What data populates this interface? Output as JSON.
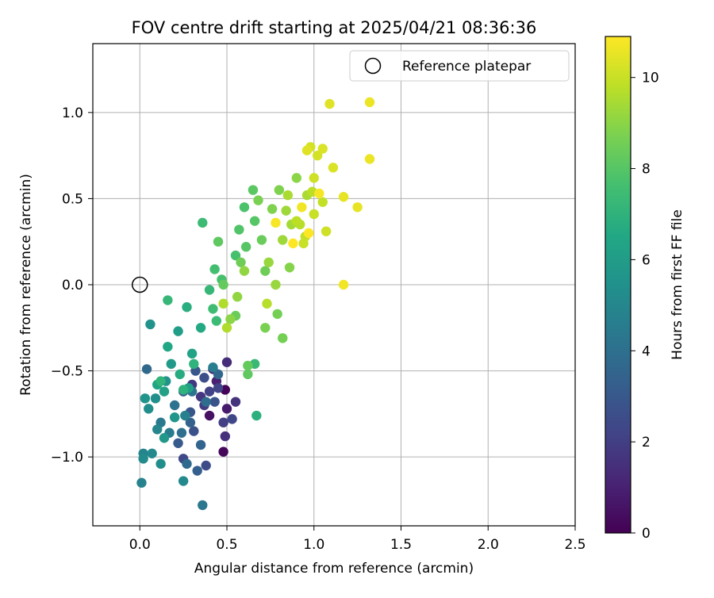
{
  "chart_data": {
    "type": "scatter",
    "title": "FOV centre drift starting at 2025/04/21 08:36:36",
    "xlabel": "Angular distance from reference (arcmin)",
    "ylabel": "Rotation from reference (arcmin)",
    "xlim": [
      -0.27,
      2.5
    ],
    "ylim": [
      -1.4,
      1.4
    ],
    "xticks": [
      0.0,
      0.5,
      1.0,
      1.5,
      2.0,
      2.5
    ],
    "xtick_labels": [
      "0.0",
      "0.5",
      "1.0",
      "1.5",
      "2.0",
      "2.5"
    ],
    "yticks": [
      -1.0,
      -0.5,
      0.0,
      0.5,
      1.0
    ],
    "ytick_labels": [
      "−1.0",
      "−0.5",
      "0.0",
      "0.5",
      "1.0"
    ],
    "grid": true,
    "legend": {
      "position": "top-right",
      "entries": [
        "Reference platepar"
      ]
    },
    "reference_point": {
      "label": "Reference platepar",
      "x": 0.0,
      "y": 0.0,
      "marker": "open-circle"
    },
    "colorbar": {
      "label": "Hours from first FF file",
      "min": 0,
      "max": 10.9,
      "ticks": [
        0,
        2,
        4,
        6,
        8,
        10
      ],
      "tick_labels": [
        "0",
        "2",
        "4",
        "6",
        "8",
        "10"
      ],
      "colormap": "viridis"
    },
    "series": [
      {
        "color_field": "hours",
        "points": [
          {
            "x": 0.49,
            "y": -0.61,
            "h": 0.1
          },
          {
            "x": 0.48,
            "y": -0.97,
            "h": 0.2
          },
          {
            "x": 0.4,
            "y": -0.76,
            "h": 0.5
          },
          {
            "x": 0.5,
            "y": -0.72,
            "h": 0.8
          },
          {
            "x": 0.44,
            "y": -0.56,
            "h": 1.0
          },
          {
            "x": 0.42,
            "y": -0.49,
            "h": 1.2
          },
          {
            "x": 0.5,
            "y": -0.45,
            "h": 1.4
          },
          {
            "x": 0.49,
            "y": -0.88,
            "h": 1.5
          },
          {
            "x": 0.55,
            "y": -0.68,
            "h": 1.6
          },
          {
            "x": 0.35,
            "y": -0.65,
            "h": 1.7
          },
          {
            "x": 0.3,
            "y": -0.58,
            "h": 1.8
          },
          {
            "x": 0.37,
            "y": -0.7,
            "h": 1.9
          },
          {
            "x": 0.48,
            "y": -0.8,
            "h": 2.0
          },
          {
            "x": 0.4,
            "y": -0.62,
            "h": 2.1
          },
          {
            "x": 0.45,
            "y": -0.6,
            "h": 2.2
          },
          {
            "x": 0.53,
            "y": -0.78,
            "h": 2.3
          },
          {
            "x": 0.25,
            "y": -1.01,
            "h": 2.4
          },
          {
            "x": 0.38,
            "y": -1.05,
            "h": 2.5
          },
          {
            "x": 0.37,
            "y": -0.54,
            "h": 2.6
          },
          {
            "x": 0.31,
            "y": -0.85,
            "h": 2.7
          },
          {
            "x": 0.43,
            "y": -0.68,
            "h": 2.8
          },
          {
            "x": 0.29,
            "y": -0.74,
            "h": 2.9
          },
          {
            "x": 0.32,
            "y": -0.5,
            "h": 3.0
          },
          {
            "x": 0.22,
            "y": -0.92,
            "h": 3.1
          },
          {
            "x": 0.25,
            "y": -0.62,
            "h": 3.2
          },
          {
            "x": 0.33,
            "y": -1.08,
            "h": 3.3
          },
          {
            "x": 0.29,
            "y": -0.8,
            "h": 3.4
          },
          {
            "x": 0.35,
            "y": -0.93,
            "h": 3.5
          },
          {
            "x": 0.45,
            "y": -0.52,
            "h": 3.6
          },
          {
            "x": 0.04,
            "y": -0.49,
            "h": 3.7
          },
          {
            "x": 0.27,
            "y": -1.04,
            "h": 3.8
          },
          {
            "x": 0.38,
            "y": -0.68,
            "h": 3.9
          },
          {
            "x": 0.24,
            "y": -0.86,
            "h": 4.0
          },
          {
            "x": 0.2,
            "y": -0.7,
            "h": 4.1
          },
          {
            "x": 0.3,
            "y": -0.62,
            "h": 4.2
          },
          {
            "x": 0.36,
            "y": -1.28,
            "h": 4.3
          },
          {
            "x": 0.12,
            "y": -0.8,
            "h": 4.4
          },
          {
            "x": 0.17,
            "y": -0.86,
            "h": 4.5
          },
          {
            "x": 0.42,
            "y": -0.48,
            "h": 4.6
          },
          {
            "x": 0.26,
            "y": -0.76,
            "h": 4.7
          },
          {
            "x": 0.01,
            "y": -1.15,
            "h": 4.8
          },
          {
            "x": 0.02,
            "y": -0.98,
            "h": 4.9
          },
          {
            "x": 0.1,
            "y": -0.84,
            "h": 5.0
          },
          {
            "x": 0.25,
            "y": -1.14,
            "h": 5.1
          },
          {
            "x": 0.07,
            "y": -0.98,
            "h": 5.1
          },
          {
            "x": 0.02,
            "y": -1.01,
            "h": 5.2
          },
          {
            "x": 0.12,
            "y": -1.04,
            "h": 5.3
          },
          {
            "x": 0.05,
            "y": -0.72,
            "h": 5.3
          },
          {
            "x": 0.09,
            "y": -0.66,
            "h": 5.4
          },
          {
            "x": 0.15,
            "y": -0.56,
            "h": 5.5
          },
          {
            "x": 0.06,
            "y": -0.23,
            "h": 5.5
          },
          {
            "x": 0.03,
            "y": -0.66,
            "h": 5.6
          },
          {
            "x": 0.2,
            "y": -0.77,
            "h": 5.7
          },
          {
            "x": 0.14,
            "y": -0.89,
            "h": 5.8
          },
          {
            "x": 0.18,
            "y": -0.46,
            "h": 5.9
          },
          {
            "x": 0.22,
            "y": -0.27,
            "h": 6.0
          },
          {
            "x": 0.28,
            "y": -0.6,
            "h": 6.1
          },
          {
            "x": 0.14,
            "y": -0.62,
            "h": 6.2
          },
          {
            "x": 0.3,
            "y": -0.4,
            "h": 6.3
          },
          {
            "x": 0.1,
            "y": -0.58,
            "h": 6.4
          },
          {
            "x": 0.16,
            "y": -0.36,
            "h": 6.5
          },
          {
            "x": 0.35,
            "y": -0.25,
            "h": 6.6
          },
          {
            "x": 0.23,
            "y": -0.52,
            "h": 6.7
          },
          {
            "x": 0.27,
            "y": -0.13,
            "h": 6.8
          },
          {
            "x": 0.67,
            "y": -0.76,
            "h": 6.9
          },
          {
            "x": 0.31,
            "y": -0.46,
            "h": 7.0
          },
          {
            "x": 0.25,
            "y": -0.61,
            "h": 7.0
          },
          {
            "x": 0.12,
            "y": -0.56,
            "h": 7.1
          },
          {
            "x": 0.16,
            "y": -0.09,
            "h": 7.2
          },
          {
            "x": 0.4,
            "y": -0.03,
            "h": 7.2
          },
          {
            "x": 0.66,
            "y": -0.46,
            "h": 7.3
          },
          {
            "x": 0.44,
            "y": -0.21,
            "h": 7.4
          },
          {
            "x": 0.36,
            "y": 0.36,
            "h": 7.4
          },
          {
            "x": 0.42,
            "y": -0.14,
            "h": 7.5
          },
          {
            "x": 0.43,
            "y": 0.09,
            "h": 7.6
          },
          {
            "x": 0.47,
            "y": 0.03,
            "h": 7.7
          },
          {
            "x": 0.55,
            "y": 0.17,
            "h": 7.7
          },
          {
            "x": 0.6,
            "y": 0.45,
            "h": 7.8
          },
          {
            "x": 0.57,
            "y": 0.32,
            "h": 7.9
          },
          {
            "x": 0.61,
            "y": 0.22,
            "h": 8.0
          },
          {
            "x": 0.66,
            "y": 0.37,
            "h": 8.0
          },
          {
            "x": 0.65,
            "y": 0.55,
            "h": 8.1
          },
          {
            "x": 0.45,
            "y": 0.25,
            "h": 8.2
          },
          {
            "x": 0.62,
            "y": -0.52,
            "h": 8.2
          },
          {
            "x": 0.62,
            "y": -0.47,
            "h": 8.3
          },
          {
            "x": 0.48,
            "y": 0.0,
            "h": 8.3
          },
          {
            "x": 0.55,
            "y": -0.18,
            "h": 8.4
          },
          {
            "x": 0.7,
            "y": 0.26,
            "h": 8.4
          },
          {
            "x": 0.72,
            "y": 0.08,
            "h": 8.5
          },
          {
            "x": 0.58,
            "y": 0.13,
            "h": 8.5
          },
          {
            "x": 0.79,
            "y": -0.17,
            "h": 8.6
          },
          {
            "x": 0.82,
            "y": -0.31,
            "h": 8.6
          },
          {
            "x": 0.72,
            "y": -0.25,
            "h": 8.7
          },
          {
            "x": 0.68,
            "y": 0.49,
            "h": 8.7
          },
          {
            "x": 0.76,
            "y": 0.44,
            "h": 8.8
          },
          {
            "x": 0.8,
            "y": 0.55,
            "h": 8.8
          },
          {
            "x": 0.86,
            "y": 0.1,
            "h": 8.9
          },
          {
            "x": 0.9,
            "y": 0.62,
            "h": 9.0
          },
          {
            "x": 0.52,
            "y": -0.2,
            "h": 9.0
          },
          {
            "x": 0.56,
            "y": -0.07,
            "h": 9.1
          },
          {
            "x": 0.6,
            "y": 0.08,
            "h": 9.1
          },
          {
            "x": 0.74,
            "y": 0.13,
            "h": 9.2
          },
          {
            "x": 0.78,
            "y": 0.0,
            "h": 9.2
          },
          {
            "x": 0.84,
            "y": 0.43,
            "h": 9.3
          },
          {
            "x": 0.82,
            "y": 0.26,
            "h": 9.3
          },
          {
            "x": 0.87,
            "y": 0.35,
            "h": 9.4
          },
          {
            "x": 0.96,
            "y": 0.52,
            "h": 9.5
          },
          {
            "x": 0.85,
            "y": 0.52,
            "h": 9.5
          },
          {
            "x": 0.5,
            "y": -0.25,
            "h": 9.6
          },
          {
            "x": 0.48,
            "y": -0.11,
            "h": 9.6
          },
          {
            "x": 0.73,
            "y": -0.11,
            "h": 9.7
          },
          {
            "x": 0.92,
            "y": 0.35,
            "h": 9.7
          },
          {
            "x": 0.9,
            "y": 0.37,
            "h": 9.8
          },
          {
            "x": 0.99,
            "y": 0.54,
            "h": 9.8
          },
          {
            "x": 0.95,
            "y": 0.28,
            "h": 9.9
          },
          {
            "x": 1.05,
            "y": 0.48,
            "h": 9.9
          },
          {
            "x": 1.0,
            "y": 0.41,
            "h": 10.0
          },
          {
            "x": 0.94,
            "y": 0.24,
            "h": 10.0
          },
          {
            "x": 1.07,
            "y": 0.31,
            "h": 10.1
          },
          {
            "x": 1.0,
            "y": 0.62,
            "h": 10.1
          },
          {
            "x": 1.02,
            "y": 0.75,
            "h": 10.2
          },
          {
            "x": 0.98,
            "y": 0.8,
            "h": 10.2
          },
          {
            "x": 1.05,
            "y": 0.79,
            "h": 10.3
          },
          {
            "x": 1.11,
            "y": 0.68,
            "h": 10.3
          },
          {
            "x": 1.09,
            "y": 1.05,
            "h": 10.4
          },
          {
            "x": 0.96,
            "y": 0.78,
            "h": 10.4
          },
          {
            "x": 1.17,
            "y": 0.51,
            "h": 10.5
          },
          {
            "x": 1.25,
            "y": 0.45,
            "h": 10.5
          },
          {
            "x": 1.32,
            "y": 0.73,
            "h": 10.6
          },
          {
            "x": 1.32,
            "y": 1.06,
            "h": 10.6
          },
          {
            "x": 1.17,
            "y": 0.0,
            "h": 10.7
          },
          {
            "x": 0.93,
            "y": 0.45,
            "h": 10.7
          },
          {
            "x": 0.78,
            "y": 0.36,
            "h": 10.8
          },
          {
            "x": 1.03,
            "y": 0.53,
            "h": 10.8
          },
          {
            "x": 0.88,
            "y": 0.24,
            "h": 10.9
          },
          {
            "x": 0.97,
            "y": 0.3,
            "h": 10.9
          }
        ]
      }
    ]
  }
}
